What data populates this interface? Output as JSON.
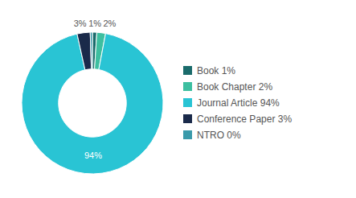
{
  "chart_data": {
    "type": "pie",
    "categories": [
      "Book 1%",
      "Book Chapter 2%",
      "Journal Article 94%",
      "Conference Paper 3%",
      "NTRO 0%"
    ],
    "values": [
      1,
      2,
      94,
      3,
      0.5
    ],
    "value_labels": [
      "1%",
      "2%",
      "94%",
      "3%",
      null
    ],
    "colors": [
      "#1a6b6b",
      "#3dbfa0",
      "#29c4d4",
      "#1a2a4a",
      "#3a9aaa"
    ],
    "data_labels": true,
    "legend": "right"
  }
}
